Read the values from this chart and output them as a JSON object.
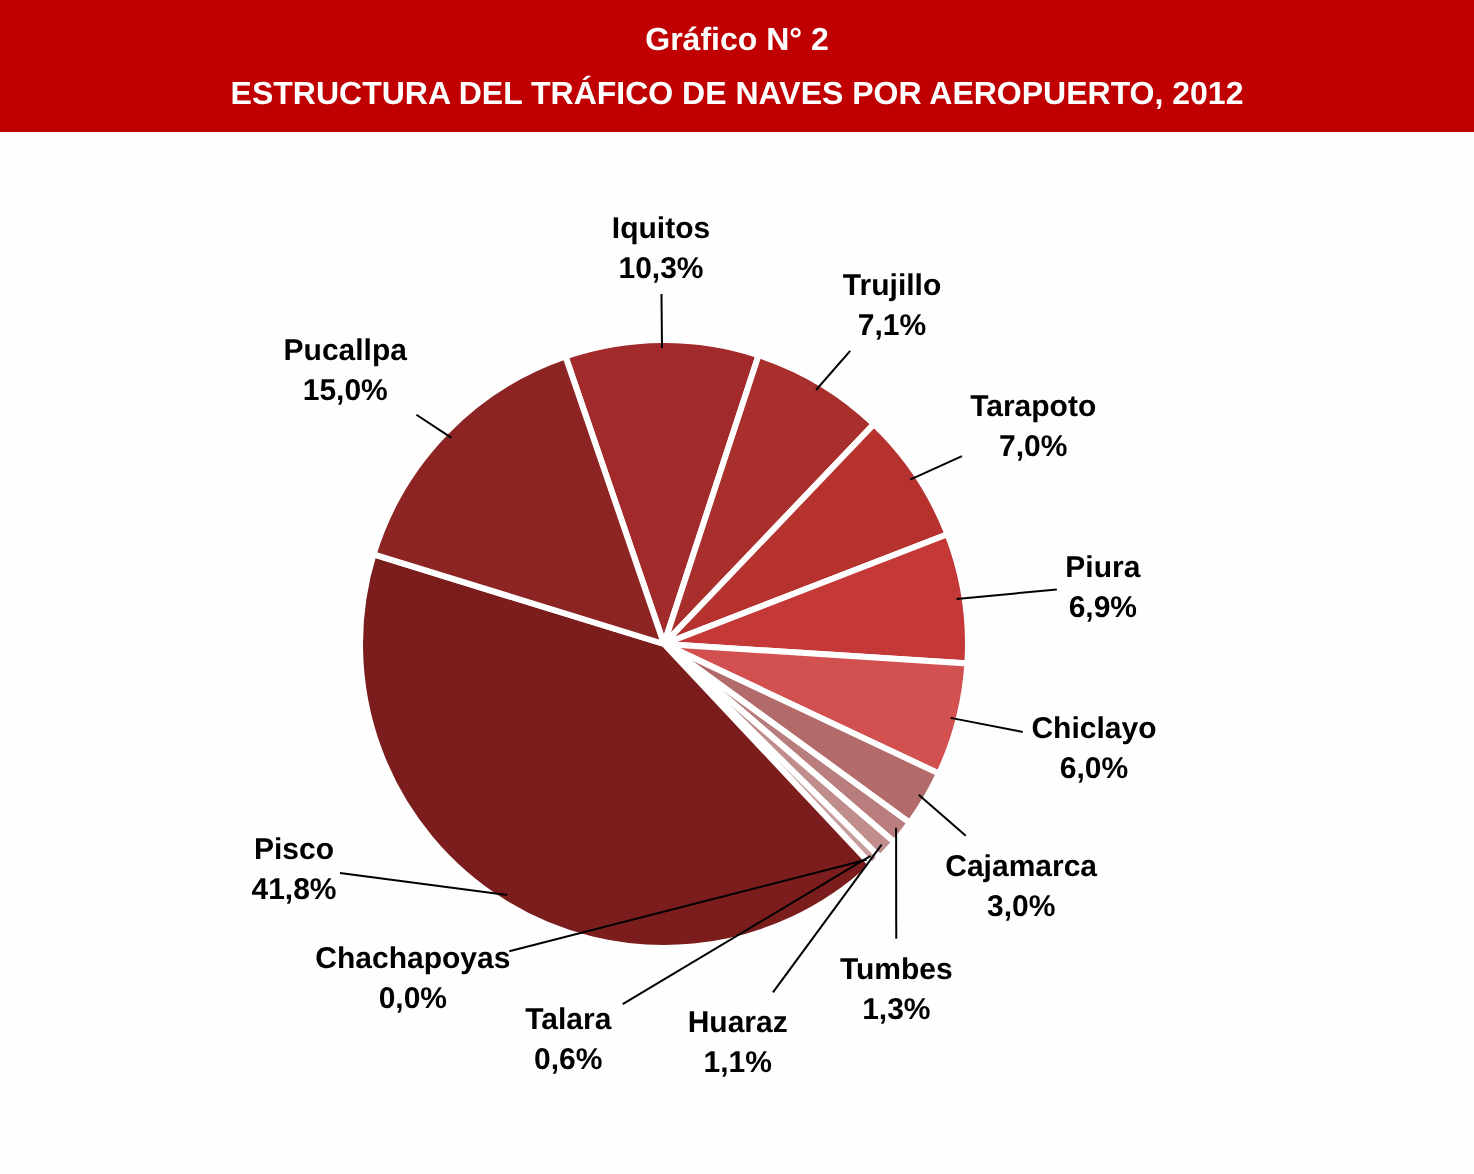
{
  "chart_data": {
    "type": "pie",
    "title": "Gráfico N° 2",
    "subtitle": "ESTRUCTURA DEL TRÁFICO DE NAVES POR AEROPUERTO, 2012",
    "categories": [
      "Iquitos",
      "Trujillo",
      "Tarapoto",
      "Piura",
      "Chiclayo",
      "Cajamarca",
      "Tumbes",
      "Huaraz",
      "Talara",
      "Chachapoyas",
      "Pisco",
      "Pucallpa"
    ],
    "values": [
      10.3,
      7.1,
      7.0,
      6.9,
      6.0,
      3.0,
      1.3,
      1.1,
      0.6,
      0.0,
      41.8,
      15.0
    ],
    "value_labels": [
      "10,3%",
      "7,1%",
      "7,0%",
      "6,9%",
      "6,0%",
      "3,0%",
      "1,3%",
      "1,1%",
      "0,6%",
      "0,0%",
      "41,8%",
      "15,0%"
    ],
    "colors": [
      "#a32a2a",
      "#a82f2c",
      "#b5322f",
      "#c43838",
      "#d25050",
      "#b36a6a",
      "#b97d7d",
      "#c08c8c",
      "#c89d9d",
      "#d0b0b0",
      "#7c1d1d",
      "#8c2424"
    ]
  }
}
